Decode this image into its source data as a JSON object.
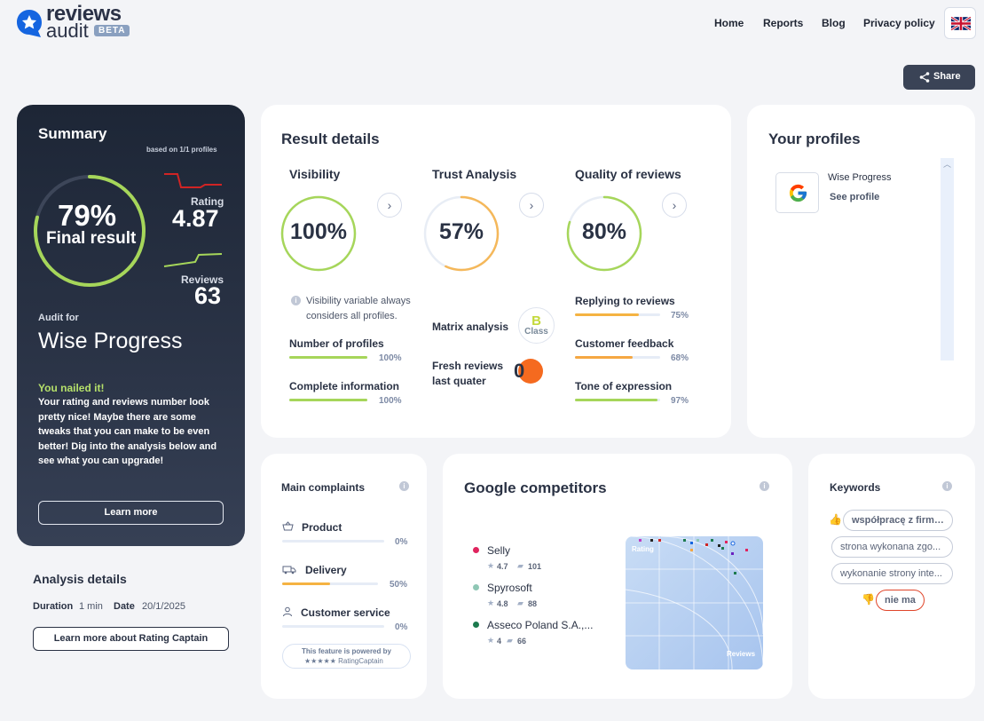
{
  "header": {
    "logo_line1": "reviews",
    "logo_line2": "audit",
    "beta": "BETA",
    "nav": [
      "Home",
      "Reports",
      "Blog",
      "Privacy policy"
    ],
    "share": "Share"
  },
  "summary": {
    "title": "Summary",
    "based_on": "based on 1/1 profiles",
    "final_percent": "79%",
    "final_label": "Final result",
    "final_value": 0.79,
    "rating_label": "Rating",
    "rating_value": "4.87",
    "reviews_label": "Reviews",
    "reviews_value": "63",
    "audit_for": "Audit for",
    "company": "Wise Progress",
    "nailed": "You nailed it!",
    "message": "Your rating and reviews number look pretty nice! Maybe there are some tweaks that you can make to be even better! Dig into the analysis below and see what you can upgrade!",
    "learn_more": "Learn more"
  },
  "analysis": {
    "title": "Analysis details",
    "duration_label": "Duration",
    "duration_value": "1 min",
    "date_label": "Date",
    "date_value": "20/1/2025",
    "button": "Learn more about Rating Captain"
  },
  "result": {
    "title": "Result details",
    "visibility": {
      "title": "Visibility",
      "percent": "100%",
      "value": 1.0,
      "note": "Visibility variable always considers all profiles.",
      "items": [
        {
          "label": "Number of profiles",
          "pct": "100%",
          "value": 1.0
        },
        {
          "label": "Complete information",
          "pct": "100%",
          "value": 1.0
        }
      ]
    },
    "trust": {
      "title": "Trust Analysis",
      "percent": "57%",
      "value": 0.57,
      "matrix_label": "Matrix analysis",
      "matrix_grade": "B",
      "matrix_class": "Class",
      "fresh_label_1": "Fresh reviews",
      "fresh_label_2": "last quater",
      "fresh_value": "0"
    },
    "quality": {
      "title": "Quality of reviews",
      "percent": "80%",
      "value": 0.8,
      "items": [
        {
          "label": "Replying to reviews",
          "pct": "75%",
          "value": 0.75
        },
        {
          "label": "Customer feedback",
          "pct": "68%",
          "value": 0.68
        },
        {
          "label": "Tone of expression",
          "pct": "97%",
          "value": 0.97
        }
      ]
    }
  },
  "profiles": {
    "title": "Your profiles",
    "name": "Wise Progress",
    "link": "See profile"
  },
  "complaints": {
    "title": "Main complaints",
    "items": [
      {
        "label": "Product",
        "pct": "0%",
        "value": 0.0
      },
      {
        "label": "Delivery",
        "pct": "50%",
        "value": 0.5
      },
      {
        "label": "Customer service",
        "pct": "0%",
        "value": 0.0
      }
    ],
    "powered_1": "This feature is powered by",
    "powered_2": "RatingCaptain"
  },
  "competitors": {
    "title": "Google competitors",
    "items": [
      {
        "name": "Selly",
        "rating": "4.7",
        "reviews": "101",
        "color": "#e0245e"
      },
      {
        "name": "Spyrosoft",
        "rating": "4.8",
        "reviews": "88",
        "color": "#8fc7b5"
      },
      {
        "name": "Asseco Poland S.A.,...",
        "rating": "4",
        "reviews": "66",
        "color": "#1c7a4e"
      }
    ],
    "map_y": "Rating",
    "map_x": "Reviews"
  },
  "keywords": {
    "title": "Keywords",
    "items": [
      "współpracę z firmą...",
      "strona wykonana zgo...",
      "wykonanie strony inte...",
      "nie ma"
    ]
  },
  "colors": {
    "green": "#a6d65a",
    "orange": "#f5a742",
    "navy": "#1d2636"
  }
}
